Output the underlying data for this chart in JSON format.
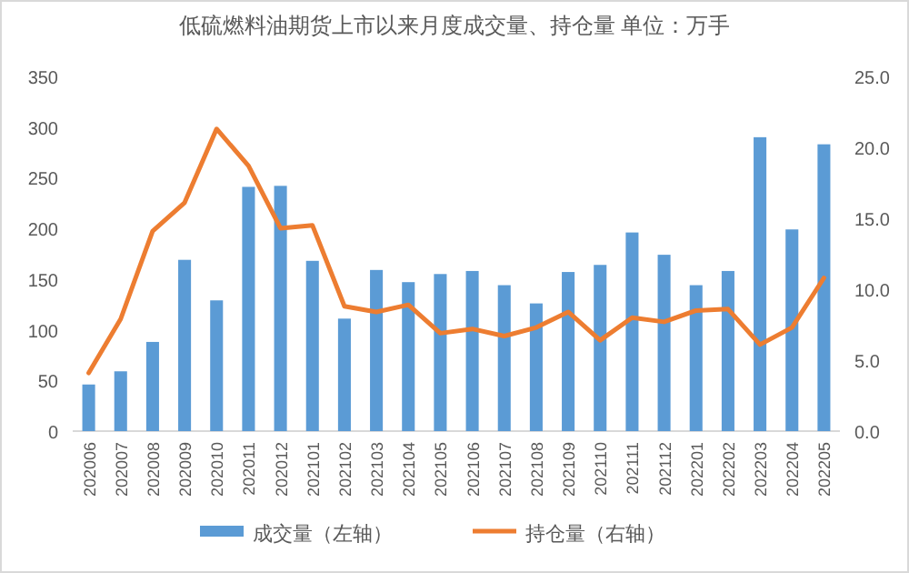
{
  "chart_data": {
    "type": "bar",
    "title": "低硫燃料油期货上市以来月度成交量、持仓量 单位：万手",
    "categories": [
      "202006",
      "202007",
      "202008",
      "202009",
      "202010",
      "202011",
      "202012",
      "202101",
      "202102",
      "202103",
      "202104",
      "202105",
      "202106",
      "202107",
      "202108",
      "202109",
      "202110",
      "202111",
      "202112",
      "202201",
      "202202",
      "202203",
      "202204",
      "202205"
    ],
    "series": [
      {
        "name": "成交量（左轴）",
        "color": "#5b9bd5",
        "values": [
          46,
          59,
          88,
          169,
          129,
          241,
          242,
          168,
          111,
          159,
          147,
          155,
          158,
          144,
          126,
          157,
          164,
          196,
          174,
          144,
          158,
          290,
          199,
          283
        ]
      },
      {
        "name": "持仓量（右轴）",
        "type": "line",
        "axis": "y2",
        "color": "#ed7d31",
        "values": [
          4.1,
          7.9,
          14.1,
          16.1,
          21.3,
          18.7,
          14.3,
          14.5,
          8.8,
          8.4,
          8.9,
          6.9,
          7.2,
          6.7,
          7.3,
          8.4,
          6.4,
          8.0,
          7.7,
          8.5,
          8.6,
          6.1,
          7.3,
          10.8
        ]
      }
    ],
    "ylim": [
      0,
      350
    ],
    "yticks": [
      0,
      50,
      100,
      150,
      200,
      250,
      300,
      350
    ],
    "y2lim": [
      0,
      25
    ],
    "y2ticks": [
      {
        "value": 0,
        "label": "0.0"
      },
      {
        "value": 5,
        "label": "5.0"
      },
      {
        "value": 10,
        "label": "10.0"
      },
      {
        "value": 15,
        "label": "15.0"
      },
      {
        "value": 20,
        "label": "20.0"
      },
      {
        "value": 25,
        "label": "25.0"
      }
    ],
    "legend": "bottom",
    "grid": false,
    "marker": "none",
    "line_style": "solid"
  }
}
